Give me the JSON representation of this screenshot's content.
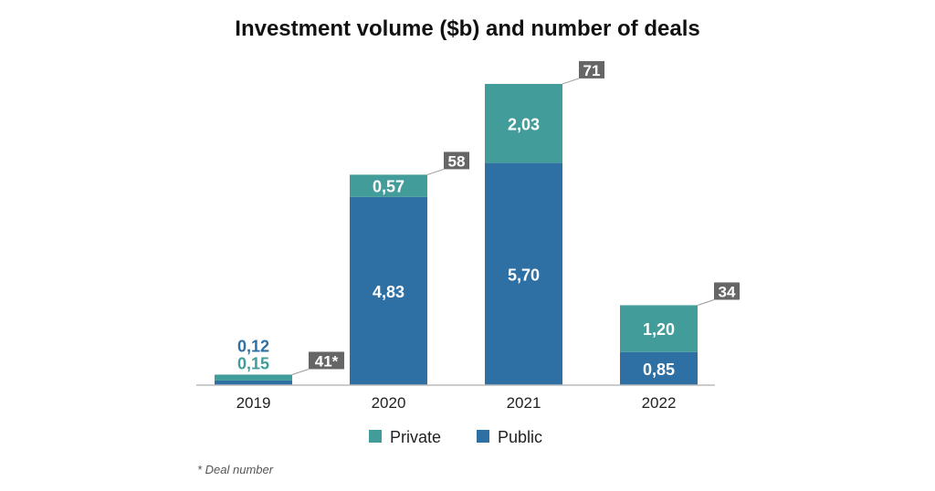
{
  "chart_data": {
    "type": "bar",
    "stacked": true,
    "title": "Investment volume ($b) and number of deals",
    "categories": [
      "2019",
      "2020",
      "2021",
      "2022"
    ],
    "series": [
      {
        "name": "Public",
        "color": "#2e70a3",
        "values": [
          0.12,
          4.83,
          5.7,
          0.85
        ],
        "labels": [
          "0,12",
          "4,83",
          "5,70",
          "0,85"
        ]
      },
      {
        "name": "Private",
        "color": "#429c99",
        "values": [
          0.15,
          0.57,
          2.03,
          1.2
        ],
        "labels": [
          "0,15",
          "0,57",
          "2,03",
          "1,20"
        ]
      }
    ],
    "deal_numbers": [
      "41*",
      "58",
      "71",
      "34"
    ],
    "legend": [
      "Private",
      "Public"
    ],
    "legend_position": "bottom",
    "footnote": "* Deal number",
    "xlabel": "",
    "ylabel": "",
    "ylim": [
      0,
      8
    ],
    "grid": false
  }
}
